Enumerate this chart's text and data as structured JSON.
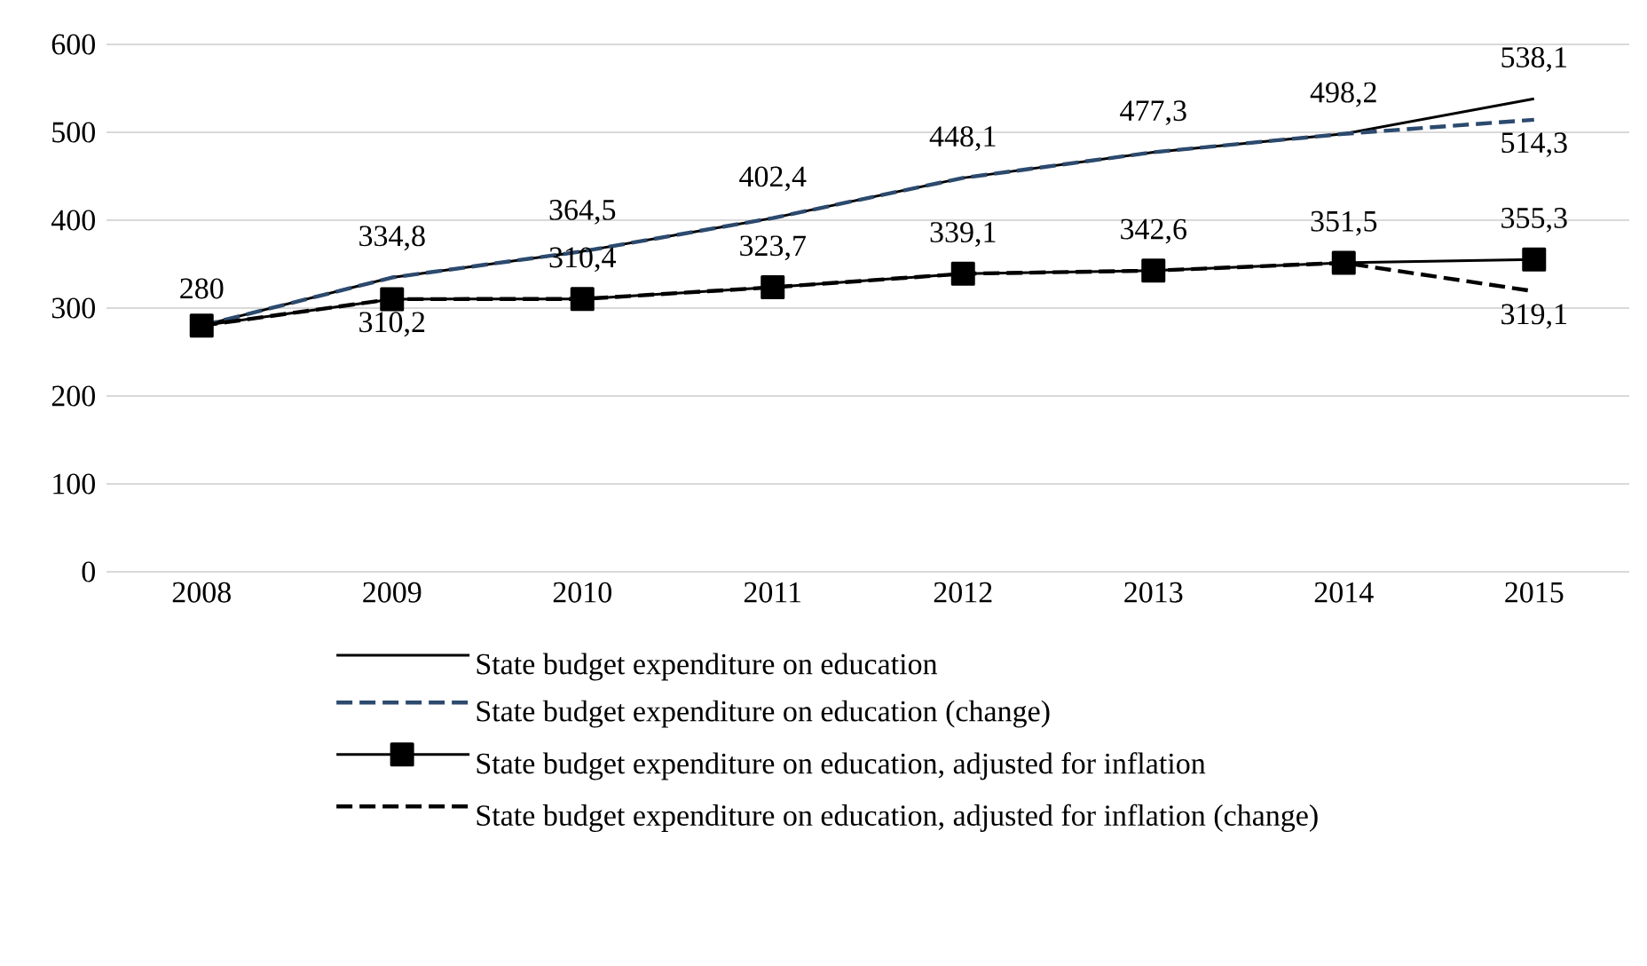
{
  "chart_data": {
    "type": "line",
    "categories": [
      "2008",
      "2009",
      "2010",
      "2011",
      "2012",
      "2013",
      "2014",
      "2015"
    ],
    "series": [
      {
        "name": "State budget expenditure on education",
        "color": "#000000",
        "line_style": "solid",
        "marker": "none",
        "values": [
          280,
          334.8,
          364.5,
          402.4,
          448.1,
          477.3,
          498.2,
          538.1
        ],
        "value_labels": [
          "280",
          "334,8",
          "364,5",
          "402,4",
          "448,1",
          "477,3",
          "498,2",
          "538,1"
        ]
      },
      {
        "name": "State budget expenditure on education (change)",
        "color": "#2c4a6e",
        "line_style": "dashed",
        "marker": "none",
        "values": [
          280,
          334.8,
          364.5,
          402.4,
          448.1,
          477.3,
          498.2,
          514.3
        ],
        "value_labels": [
          null,
          null,
          null,
          null,
          null,
          null,
          null,
          "514,3"
        ]
      },
      {
        "name": "State budget expenditure on education, adjusted for inflation",
        "color": "#000000",
        "line_style": "solid",
        "marker": "square",
        "values": [
          280,
          310.2,
          310.4,
          323.7,
          339.1,
          342.6,
          351.5,
          355.3
        ],
        "value_labels": [
          null,
          null,
          "310,4",
          "323,7",
          "339,1",
          "342,6",
          "351,5",
          "355,3"
        ]
      },
      {
        "name": "State budget expenditure on education, adjusted for inflation (change)",
        "color": "#000000",
        "line_style": "dashed",
        "marker": "none",
        "values": [
          280,
          310.2,
          310.4,
          323.7,
          339.1,
          342.6,
          351.5,
          319.1
        ],
        "value_labels": [
          null,
          "310,2",
          null,
          null,
          null,
          null,
          null,
          "319,1"
        ]
      }
    ],
    "ylim": [
      0,
      600
    ],
    "yticks": [
      0,
      100,
      200,
      300,
      400,
      500,
      600
    ],
    "grid": "y",
    "legend": "bottom"
  }
}
